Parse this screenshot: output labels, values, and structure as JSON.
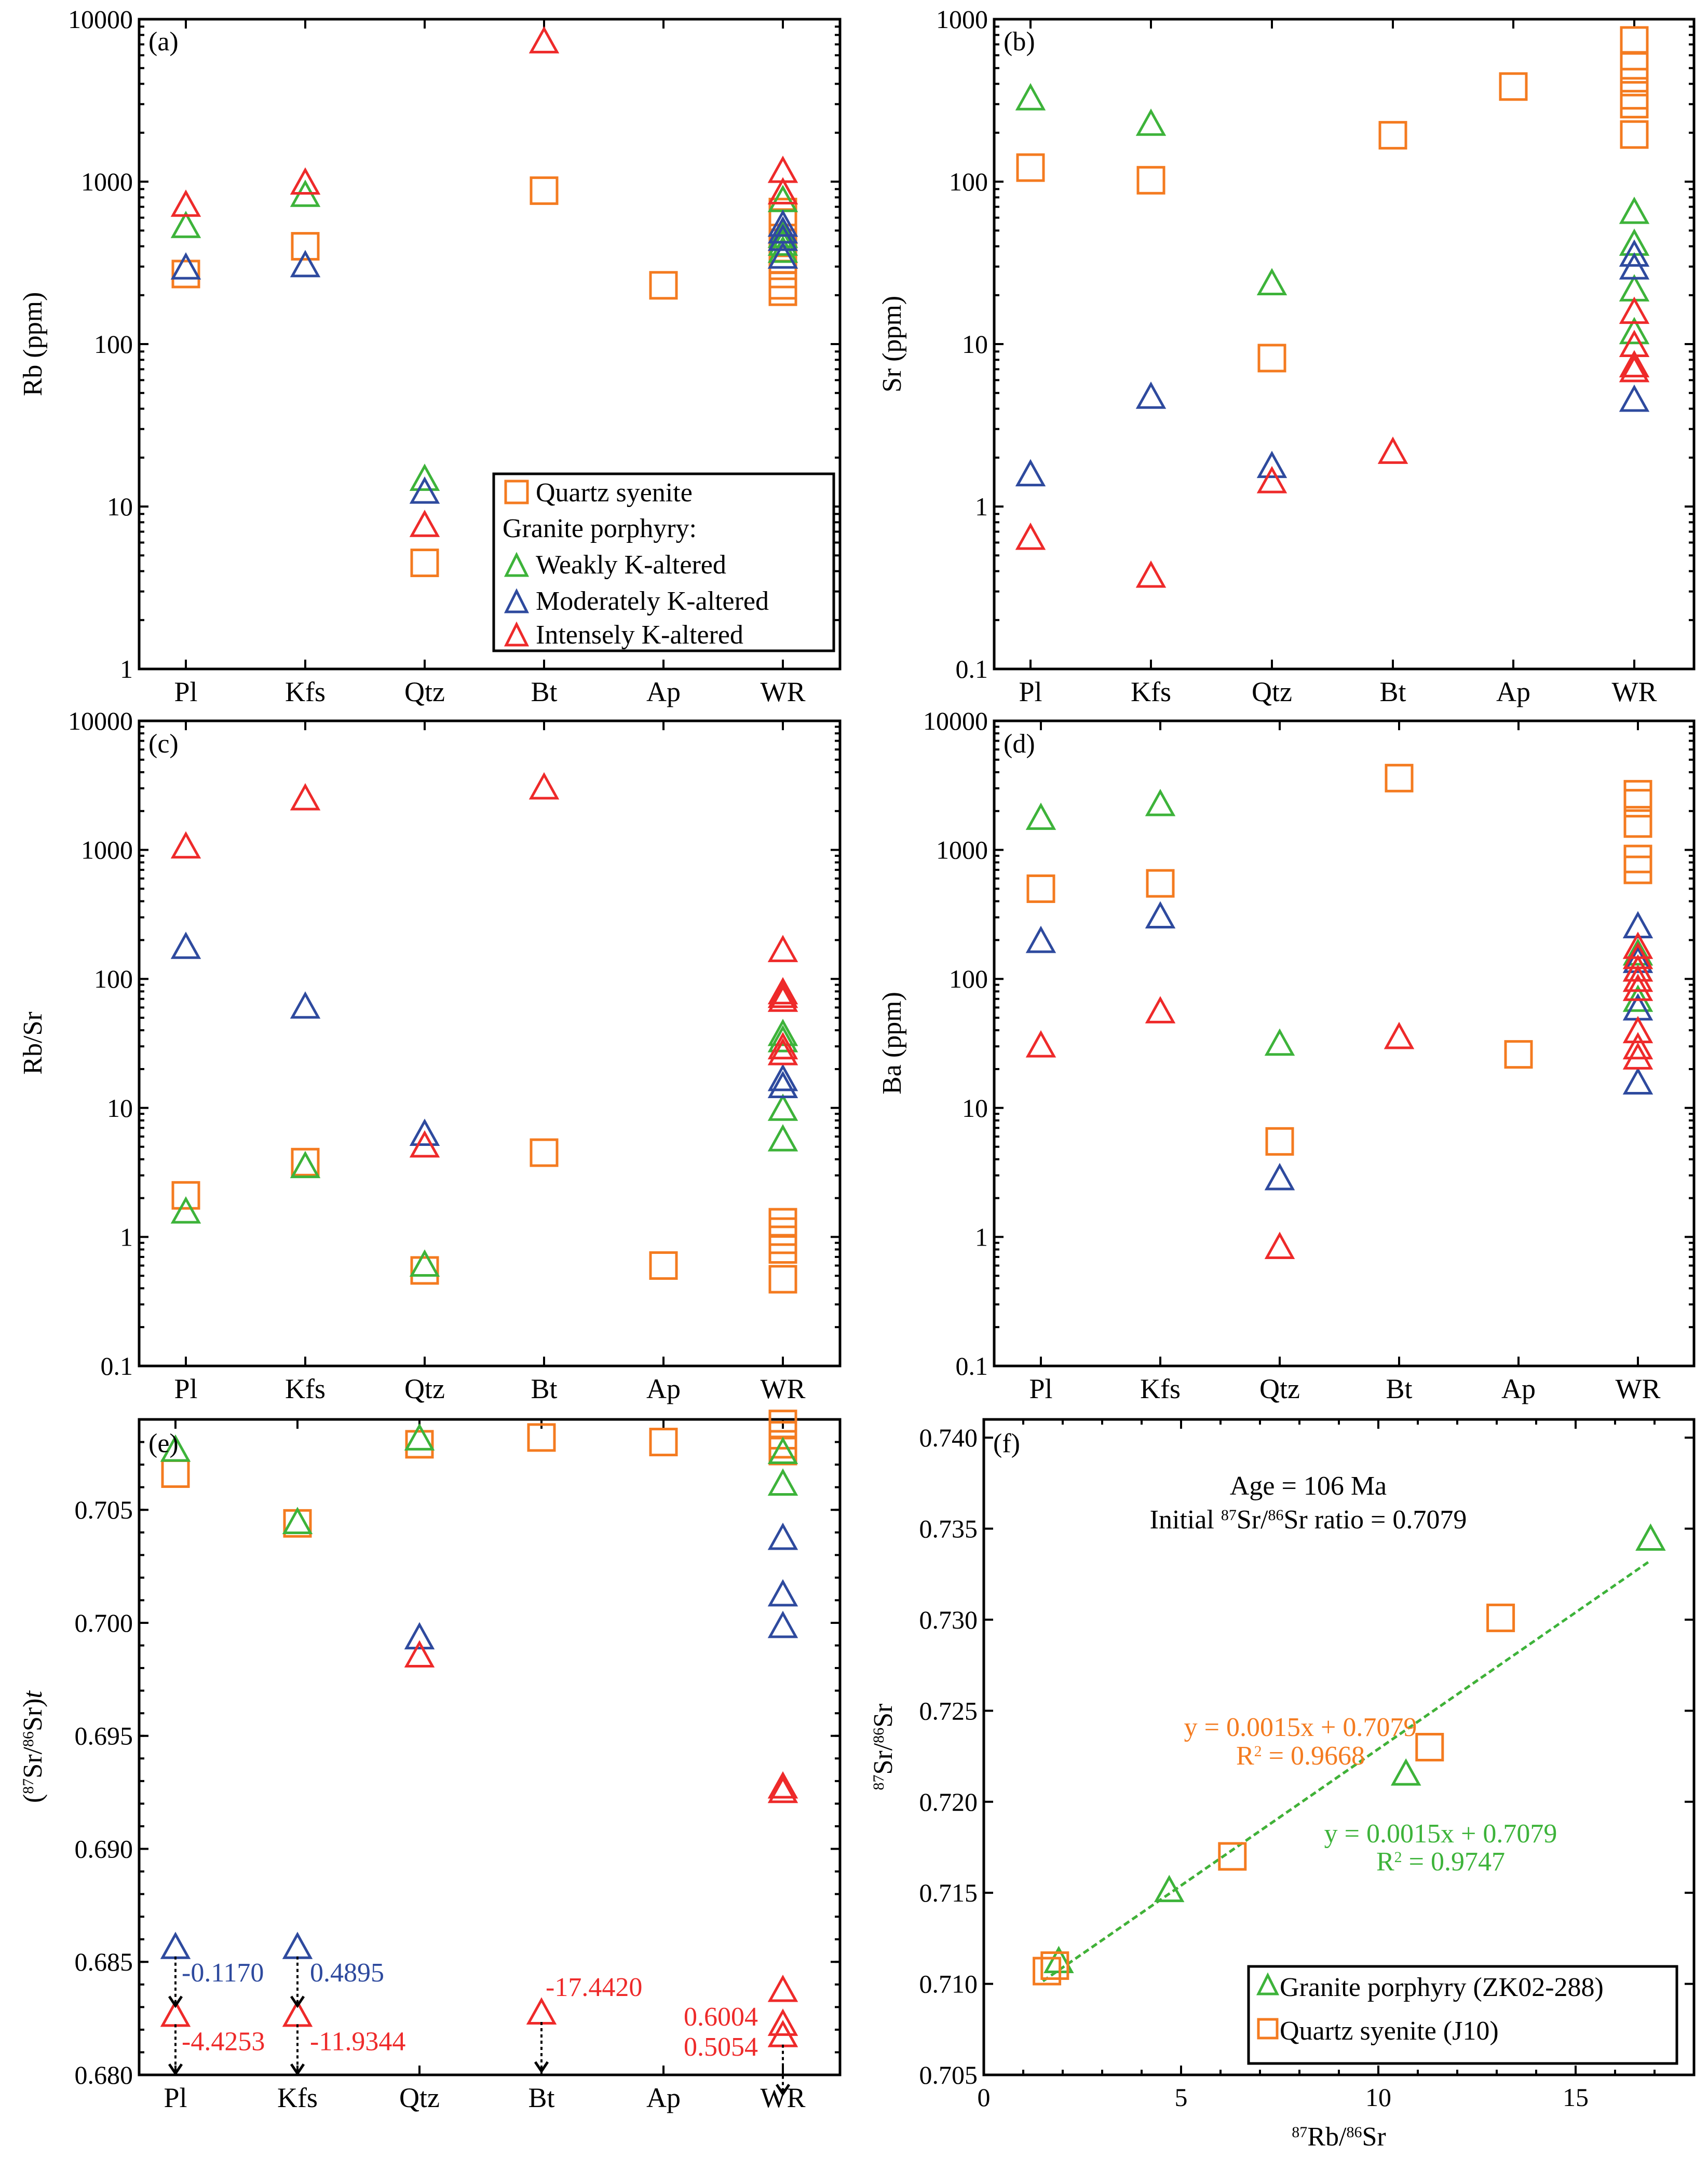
{
  "colors": {
    "quartz_syenite": "#F47B20",
    "weakly": "#3DB33A",
    "moderately": "#2E4A9E",
    "intensely": "#EE2A2A"
  },
  "legend": {
    "quartz_syenite": "Quartz syenite",
    "granite_header": "Granite porphyry:",
    "weakly": "Weakly K-altered",
    "moderately": "Moderately K-altered",
    "intensely": "Intensely K-altered"
  },
  "chart_data": [
    {
      "id": "a",
      "label": "(a)",
      "type": "scatter",
      "scale": "log",
      "ylabel": "Rb (ppm)",
      "ylim": [
        1,
        10000
      ],
      "yticks": [
        "1",
        "10",
        "100",
        "1000",
        "10000"
      ],
      "categories": [
        "Pl",
        "Kfs",
        "Qtz",
        "Bt",
        "Ap",
        "WR"
      ],
      "series": [
        {
          "name": "Quartz syenite",
          "key": "quartz_syenite",
          "marker": "square",
          "points": [
            [
              0,
              270
            ],
            [
              1,
              400
            ],
            [
              2,
              4.5
            ],
            [
              3,
              880
            ],
            [
              4,
              230
            ],
            [
              5,
              650
            ],
            [
              5,
              560
            ],
            [
              5,
              420
            ],
            [
              5,
              330
            ],
            [
              5,
              270
            ],
            [
              5,
              230
            ],
            [
              5,
              210
            ]
          ]
        },
        {
          "name": "Weakly K-altered",
          "key": "weakly",
          "marker": "triangle",
          "points": [
            [
              0,
              540
            ],
            [
              1,
              840
            ],
            [
              2,
              15
            ],
            [
              5,
              780
            ],
            [
              5,
              470
            ],
            [
              5,
              420
            ],
            [
              5,
              380
            ]
          ]
        },
        {
          "name": "Moderately K-altered",
          "key": "moderately",
          "marker": "triangle",
          "points": [
            [
              0,
              300
            ],
            [
              1,
              310
            ],
            [
              2,
              12.5
            ],
            [
              5,
              550
            ],
            [
              5,
              500
            ],
            [
              5,
              450
            ],
            [
              5,
              350
            ]
          ]
        },
        {
          "name": "Intensely K-altered",
          "key": "intensely",
          "marker": "triangle",
          "points": [
            [
              0,
              730
            ],
            [
              1,
              1000
            ],
            [
              2,
              7.8
            ],
            [
              3,
              7400
            ],
            [
              5,
              1180
            ],
            [
              5,
              870
            ]
          ]
        }
      ]
    },
    {
      "id": "b",
      "label": "(b)",
      "type": "scatter",
      "scale": "log",
      "ylabel": "Sr (ppm)",
      "ylim": [
        0.1,
        1000
      ],
      "yticks": [
        "0.1",
        "1",
        "10",
        "100",
        "1000"
      ],
      "categories": [
        "Pl",
        "Kfs",
        "Qtz",
        "Bt",
        "Ap",
        "WR"
      ],
      "series": [
        {
          "name": "Quartz syenite",
          "key": "quartz_syenite",
          "marker": "square",
          "points": [
            [
              0,
              122
            ],
            [
              1,
              102
            ],
            [
              2,
              8.2
            ],
            [
              3,
              193
            ],
            [
              4,
              385
            ],
            [
              5,
              740
            ],
            [
              5,
              520
            ],
            [
              5,
              410
            ],
            [
              5,
              340
            ],
            [
              5,
              300
            ],
            [
              5,
              195
            ]
          ]
        },
        {
          "name": "Weakly K-altered",
          "key": "weakly",
          "marker": "triangle",
          "points": [
            [
              0,
              330
            ],
            [
              1,
              230
            ],
            [
              2,
              24
            ],
            [
              5,
              66
            ],
            [
              5,
              42
            ],
            [
              5,
              22
            ],
            [
              5,
              12
            ]
          ]
        },
        {
          "name": "Moderately K-altered",
          "key": "moderately",
          "marker": "triangle",
          "points": [
            [
              0,
              1.6
            ],
            [
              1,
              4.8
            ],
            [
              2,
              1.8
            ],
            [
              5,
              36
            ],
            [
              5,
              30
            ],
            [
              5,
              4.6
            ]
          ]
        },
        {
          "name": "Intensely K-altered",
          "key": "intensely",
          "marker": "triangle",
          "points": [
            [
              0,
              0.65
            ],
            [
              1,
              0.38
            ],
            [
              2,
              1.45
            ],
            [
              3,
              2.2
            ],
            [
              5,
              16
            ],
            [
              5,
              10
            ],
            [
              5,
              7.5
            ],
            [
              5,
              7.0
            ]
          ]
        }
      ]
    },
    {
      "id": "c",
      "label": "(c)",
      "type": "scatter",
      "scale": "log",
      "ylabel": "Rb/Sr",
      "ylim": [
        0.1,
        10000
      ],
      "yticks": [
        "0.1",
        "1",
        "10",
        "100",
        "1000",
        "10000"
      ],
      "categories": [
        "Pl",
        "Kfs",
        "Qtz",
        "Bt",
        "Ap",
        "WR"
      ],
      "series": [
        {
          "name": "Quartz syenite",
          "key": "quartz_syenite",
          "marker": "square",
          "points": [
            [
              0,
              2.1
            ],
            [
              1,
              3.8
            ],
            [
              2,
              0.55
            ],
            [
              3,
              4.5
            ],
            [
              4,
              0.6
            ],
            [
              5,
              1.3
            ],
            [
              5,
              1.1
            ],
            [
              5,
              0.95
            ],
            [
              5,
              0.8
            ],
            [
              5,
              0.47
            ]
          ]
        },
        {
          "name": "Weakly K-altered",
          "key": "weakly",
          "marker": "triangle",
          "points": [
            [
              0,
              1.6
            ],
            [
              1,
              3.6
            ],
            [
              2,
              0.62
            ],
            [
              5,
              38
            ],
            [
              5,
              34
            ],
            [
              5,
              10
            ],
            [
              5,
              5.8
            ]
          ]
        },
        {
          "name": "Moderately K-altered",
          "key": "moderately",
          "marker": "triangle",
          "points": [
            [
              0,
              180
            ],
            [
              1,
              62
            ],
            [
              2,
              6.4
            ],
            [
              5,
              17
            ],
            [
              5,
              15
            ]
          ]
        },
        {
          "name": "Intensely K-altered",
          "key": "intensely",
          "marker": "triangle",
          "points": [
            [
              0,
              1080
            ],
            [
              1,
              2550
            ],
            [
              2,
              5.2
            ],
            [
              3,
              3100
            ],
            [
              5,
              170
            ],
            [
              5,
              80
            ],
            [
              5,
              75
            ],
            [
              5,
              70
            ],
            [
              5,
              30
            ],
            [
              5,
              27
            ]
          ]
        }
      ]
    },
    {
      "id": "d",
      "label": "(d)",
      "type": "scatter",
      "scale": "log",
      "ylabel": "Ba (ppm)",
      "ylim": [
        0.1,
        10000
      ],
      "yticks": [
        "0.1",
        "1",
        "10",
        "100",
        "1000",
        "10000"
      ],
      "categories": [
        "Pl",
        "Kfs",
        "Qtz",
        "Bt",
        "Ap",
        "WR"
      ],
      "series": [
        {
          "name": "Quartz syenite",
          "key": "quartz_syenite",
          "marker": "square",
          "points": [
            [
              0,
              500
            ],
            [
              1,
              550
            ],
            [
              2,
              5.5
            ],
            [
              3,
              3600
            ],
            [
              4,
              26
            ],
            [
              5,
              2700
            ],
            [
              5,
              2300
            ],
            [
              5,
              1600
            ],
            [
              5,
              850
            ],
            [
              5,
              700
            ]
          ]
        },
        {
          "name": "Weakly K-altered",
          "key": "weakly",
          "marker": "triangle",
          "points": [
            [
              0,
              1800
            ],
            [
              1,
              2300
            ],
            [
              2,
              32
            ],
            [
              5,
              160
            ],
            [
              5,
              120
            ],
            [
              5,
              70
            ]
          ]
        },
        {
          "name": "Moderately K-altered",
          "key": "moderately",
          "marker": "triangle",
          "points": [
            [
              0,
              200
            ],
            [
              1,
              310
            ],
            [
              2,
              2.9
            ],
            [
              5,
              260
            ],
            [
              5,
              140
            ],
            [
              5,
              60
            ],
            [
              5,
              16
            ]
          ]
        },
        {
          "name": "Intensely K-altered",
          "key": "intensely",
          "marker": "triangle",
          "points": [
            [
              0,
              31
            ],
            [
              1,
              57
            ],
            [
              2,
              0.85
            ],
            [
              3,
              36
            ],
            [
              5,
              180
            ],
            [
              5,
              150
            ],
            [
              5,
              120
            ],
            [
              5,
              100
            ],
            [
              5,
              85
            ],
            [
              5,
              40
            ],
            [
              5,
              30
            ],
            [
              5,
              25
            ]
          ]
        }
      ]
    },
    {
      "id": "e",
      "label": "(e)",
      "type": "scatter",
      "scale": "linear",
      "ylabel": "(87Sr/86Sr)t",
      "ylim": [
        0.68,
        0.709
      ],
      "yticks": [
        "0.680",
        "0.685",
        "0.690",
        "0.695",
        "0.700",
        "0.705"
      ],
      "categories": [
        "Pl",
        "Kfs",
        "Qtz",
        "Bt",
        "Ap",
        "WR"
      ],
      "series": [
        {
          "name": "Quartz syenite",
          "key": "quartz_syenite",
          "marker": "square",
          "points": [
            [
              0,
              0.7066
            ],
            [
              1,
              0.7044
            ],
            [
              2,
              0.7079
            ],
            [
              3,
              0.7082
            ],
            [
              4,
              0.708
            ],
            [
              5,
              0.7088
            ],
            [
              5,
              0.7083
            ],
            [
              5,
              0.7079
            ],
            [
              5,
              0.7076
            ]
          ]
        },
        {
          "name": "Weakly K-altered",
          "key": "weakly",
          "marker": "triangle",
          "points": [
            [
              0,
              0.7077
            ],
            [
              1,
              0.7045
            ],
            [
              2,
              0.7082
            ],
            [
              5,
              0.7076
            ],
            [
              5,
              0.7062
            ]
          ]
        },
        {
          "name": "Moderately K-altered",
          "key": "moderately",
          "marker": "triangle",
          "points": [
            [
              0,
              0.6857
            ],
            [
              1,
              0.6857
            ],
            [
              2,
              0.6994
            ],
            [
              5,
              0.7038
            ],
            [
              5,
              0.7013
            ],
            [
              5,
              0.6999
            ]
          ]
        },
        {
          "name": "Intensely K-altered",
          "key": "intensely",
          "marker": "triangle",
          "points": [
            [
              0,
              0.6827
            ],
            [
              1,
              0.6827
            ],
            [
              2,
              0.6986
            ],
            [
              3,
              0.6828
            ],
            [
              5,
              0.6928
            ],
            [
              5,
              0.6926
            ],
            [
              5,
              0.6838
            ],
            [
              5,
              0.6823
            ],
            [
              5,
              0.6818
            ]
          ]
        }
      ],
      "offscale": [
        {
          "cat": 0,
          "from": 0.6857,
          "text": "-0.1170",
          "key": "moderately",
          "dx": 12,
          "dy": 68
        },
        {
          "cat": 1,
          "from": 0.6857,
          "text": "0.4895",
          "key": "moderately",
          "dx": 24,
          "dy": 68
        },
        {
          "cat": 0,
          "from": 0.6827,
          "text": "-4.4253",
          "key": "intensely",
          "dx": 12,
          "dy": 70
        },
        {
          "cat": 1,
          "from": 0.6827,
          "text": "-11.9344",
          "key": "intensely",
          "dx": 24,
          "dy": 70
        },
        {
          "cat": 3,
          "from": 0.6828,
          "text": "-17.4420",
          "key": "intensely",
          "dx": 8,
          "dy": -30
        },
        {
          "cat": 5,
          "from": 0.6818,
          "text": "",
          "key": "intensely",
          "dx": 0,
          "dy": 0
        }
      ],
      "wr_labels": [
        "0.6004",
        "0.5054"
      ]
    },
    {
      "id": "f",
      "label": "(f)",
      "type": "scatter",
      "xlabel": "87Rb/86Sr",
      "ylabel": "87Sr/86Sr",
      "xlim": [
        0,
        18
      ],
      "ylim": [
        0.705,
        0.741
      ],
      "xticks": [
        "0",
        "5",
        "10",
        "15"
      ],
      "yticks": [
        "0.705",
        "0.710",
        "0.715",
        "0.720",
        "0.725",
        "0.730",
        "0.735",
        "0.740"
      ],
      "annotation_age": "Age = 106 Ma",
      "annotation_initial_prefix": "Initial ",
      "annotation_initial_suffix": " ratio = 0.7079",
      "series": [
        {
          "name": "Granite porphyry (ZK02-288)",
          "key": "weakly",
          "marker": "triangle",
          "points": [
            [
              1.9,
              0.7113
            ],
            [
              4.7,
              0.7152
            ],
            [
              10.7,
              0.7216
            ],
            [
              16.9,
              0.7345
            ]
          ]
        },
        {
          "name": "Quartz syenite (J10)",
          "key": "quartz_syenite",
          "marker": "square",
          "points": [
            [
              1.6,
              0.7107
            ],
            [
              1.8,
              0.711
            ],
            [
              6.3,
              0.717
            ],
            [
              11.3,
              0.723
            ],
            [
              13.1,
              0.7301
            ]
          ]
        }
      ],
      "fits": [
        {
          "key": "quartz_syenite",
          "slope": 0.0015,
          "intercept": 0.7079,
          "x0": 1.5,
          "x1": 13.1,
          "equation": "y = 0.0015x + 0.7079",
          "r2_value": " = 0.9668"
        },
        {
          "key": "weakly",
          "slope": 0.0015,
          "intercept": 0.7079,
          "x0": 1.5,
          "x1": 16.9,
          "equation": "y = 0.0015x + 0.7079",
          "r2_value": " = 0.9747"
        }
      ]
    }
  ]
}
